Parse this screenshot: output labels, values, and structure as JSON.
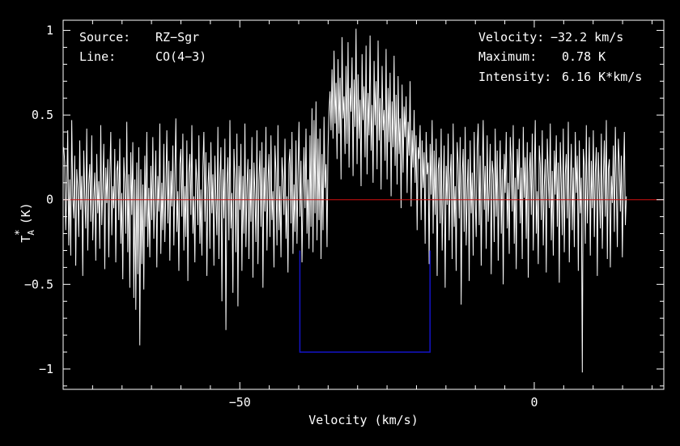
{
  "chart_data": {
    "type": "line",
    "xlabel": "Velocity (km/s)",
    "ylabel_main": "T",
    "ylabel_sup": "*",
    "ylabel_sub": "A",
    "ylabel_unit": "(K)",
    "xlim": [
      -80,
      22
    ],
    "ylim": [
      -1.12,
      1.06
    ],
    "x_ticks": [
      {
        "value": -50,
        "label": "−50"
      },
      {
        "value": 0,
        "label": "0"
      }
    ],
    "y_ticks": [
      {
        "value": 1,
        "label": "1"
      },
      {
        "value": 0.5,
        "label": "0.5"
      },
      {
        "value": 0,
        "label": "0"
      },
      {
        "value": -0.5,
        "label": "−0.5"
      },
      {
        "value": -1,
        "label": "−1"
      }
    ],
    "info_left": [
      {
        "key": "Source:",
        "value": "RZ−Sgr"
      },
      {
        "key": "Line:",
        "value": "CO(4−3)"
      }
    ],
    "info_right": [
      {
        "key": "Velocity:",
        "value": "−32.2 km/s"
      },
      {
        "key": "Maximum:",
        "value": "0.78 K"
      },
      {
        "key": "Intensity:",
        "value": "6.16 K*km/s"
      }
    ],
    "fit_profile": {
      "v_min": -39.8,
      "v_max": -17.7,
      "depth": -0.9,
      "rim": -0.3
    },
    "baseline": 0,
    "series": [
      {
        "x_start": -79.9,
        "x_step": 0.17,
        "values": [
          0.31,
          0.22,
          -0.18,
          0.05,
          0.41,
          -0.27,
          0.12,
          -0.33,
          0.47,
          0.02,
          -0.11,
          0.26,
          -0.39,
          0.18,
          0.07,
          -0.22,
          0.35,
          -0.06,
          0.14,
          -0.45,
          0.29,
          0.03,
          -0.17,
          0.42,
          -0.3,
          0.09,
          0.21,
          -0.13,
          0.38,
          -0.24,
          0.01,
          0.16,
          -0.36,
          0.27,
          -0.08,
          0.11,
          -0.29,
          0.44,
          -0.15,
          0.06,
          0.33,
          -0.41,
          0.19,
          -0.02,
          0.24,
          -0.34,
          0.13,
          0.4,
          -0.21,
          0.08,
          -0.05,
          0.3,
          -0.37,
          0.17,
          0.23,
          -0.12,
          0.36,
          -0.26,
          0.04,
          -0.47,
          0.25,
          0.1,
          -0.2,
          0.46,
          -0.31,
          0.15,
          -0.52,
          0.28,
          -0.09,
          0.34,
          -0.58,
          0.12,
          -0.65,
          0.22,
          -0.44,
          0.31,
          -0.86,
          0.18,
          -0.38,
          0.09,
          -0.53,
          0.26,
          -0.16,
          0.4,
          -0.28,
          0.07,
          -0.34,
          0.2,
          -0.12,
          0.37,
          -0.23,
          0.03,
          0.29,
          -0.4,
          0.14,
          -0.07,
          0.45,
          -0.32,
          0.1,
          -0.18,
          0.33,
          -0.25,
          0.06,
          0.41,
          -0.14,
          0.23,
          -0.36,
          0.17,
          -0.04,
          0.32,
          -0.27,
          0.12,
          0.48,
          -0.19,
          0.05,
          -0.42,
          0.21,
          0.3,
          -0.1,
          0.39,
          -0.3,
          0.08,
          -0.22,
          0.35,
          -0.48,
          0.16,
          0.27,
          -0.09,
          0.44,
          -0.2,
          0.02,
          -0.37,
          0.24,
          0.11,
          -0.15,
          0.38,
          -0.26,
          0.06,
          -0.33,
          0.19,
          0.4,
          -0.13,
          0.28,
          -0.45,
          0.07,
          0.22,
          -0.29,
          0.34,
          -0.08,
          0.15,
          -0.39,
          0.26,
          0.01,
          -0.21,
          0.43,
          -0.35,
          0.13,
          0.31,
          -0.6,
          0.18,
          -0.11,
          0.36,
          -0.77,
          0.09,
          0.25,
          -0.24,
          0.47,
          -0.17,
          0.04,
          -0.55,
          0.3,
          0.12,
          -0.31,
          0.39,
          -0.63,
          0.2,
          -0.06,
          0.33,
          -0.42,
          0.14,
          -0.2,
          0.45,
          -0.28,
          0.07,
          0.24,
          -0.35,
          0.18,
          -0.13,
          0.37,
          -0.46,
          0.22,
          0.03,
          -0.25,
          0.41,
          -0.38,
          0.11,
          0.29,
          -0.16,
          0.34,
          -0.52,
          0.19,
          -0.07,
          0.43,
          -0.3,
          0.1,
          0.27,
          -0.22,
          0.38,
          -0.12,
          0.05,
          -0.4,
          0.32,
          0.16,
          -0.27,
          0.44,
          -0.18,
          0.08,
          -0.34,
          0.25,
          0.13,
          -0.09,
          0.36,
          -0.23,
          0.02,
          -0.43,
          0.21,
          0.3,
          -0.14,
          0.4,
          -0.32,
          0.09,
          -0.19,
          0.35,
          -0.26,
          0.15,
          0.46,
          -0.1,
          0.23,
          -0.37,
          0.06,
          0.31,
          -0.05,
          0.42,
          -0.2,
          0.12,
          -0.29,
          0.38,
          -0.16,
          0.54,
          -0.31,
          0.47,
          -0.08,
          0.58,
          -0.24,
          0.36,
          -0.12,
          0.42,
          -0.35,
          0.27,
          -0.18,
          0.49,
          0.07,
          0.21,
          -0.28,
          0.31,
          0.52,
          0.64,
          0.41,
          0.77,
          0.36,
          0.88,
          0.45,
          0.69,
          0.24,
          0.83,
          0.39,
          0.72,
          0.12,
          0.96,
          0.48,
          0.61,
          0.27,
          0.79,
          0.33,
          0.93,
          0.19,
          0.66,
          0.52,
          0.84,
          0.14,
          0.71,
          0.43,
          1.01,
          0.21,
          0.74,
          0.36,
          0.59,
          0.08,
          0.86,
          0.47,
          0.67,
          0.25,
          0.91,
          0.15,
          0.63,
          0.38,
          0.97,
          0.29,
          0.56,
          0.1,
          0.82,
          0.44,
          0.7,
          0.18,
          0.94,
          0.35,
          0.6,
          0.06,
          0.79,
          0.41,
          0.53,
          0.23,
          0.89,
          0.12,
          0.66,
          0.34,
          0.75,
          0.02,
          0.58,
          0.31,
          0.85,
          0.2,
          0.62,
          0.09,
          0.73,
          0.27,
          0.48,
          -0.05,
          0.68,
          0.16,
          0.55,
          0.37,
          0.61,
          0.04,
          0.46,
          0.26,
          0.7,
          -0.04,
          0.41,
          0.19,
          0.53,
          0.1,
          0.38,
          -0.18,
          0.31,
          0.24,
          0.44,
          -0.12,
          0.35,
          0.07,
          0.28,
          -0.26,
          0.4,
          0.15,
          0.22,
          -0.38,
          0.33,
          0.03,
          0.47,
          -0.2,
          0.29,
          -0.09,
          0.36,
          -0.45,
          0.18,
          0.25,
          -0.14,
          0.42,
          -0.3,
          0.06,
          0.32,
          -0.52,
          0.2,
          -0.03,
          0.39,
          -0.24,
          0.13,
          0.27,
          -0.35,
          0.45,
          -0.16,
          0.08,
          -0.42,
          0.34,
          0.21,
          -0.11,
          0.37,
          -0.62,
          0.14,
          0.3,
          -0.19,
          0.43,
          -0.27,
          0.05,
          0.24,
          -0.48,
          0.35,
          -0.08,
          0.16,
          -0.33,
          0.4,
          0.02,
          -0.22,
          0.31,
          0.45,
          -0.15,
          0.26,
          -0.39,
          0.12,
          0.47,
          -0.06,
          0.2,
          -0.29,
          0.38,
          -0.13,
          0.07,
          0.33,
          -0.44,
          0.23,
          0.15,
          -0.25,
          0.42,
          -0.1,
          0.29,
          -0.36,
          0.08,
          0.35,
          -0.2,
          0.18,
          -0.5,
          0.27,
          0.04,
          0.4,
          -0.17,
          0.1,
          -0.32,
          0.37,
          0.22,
          -0.07,
          0.44,
          -0.26,
          0.13,
          -0.41,
          0.3,
          0.06,
          0.36,
          -0.14,
          0.19,
          -0.35,
          0.43,
          0.01,
          0.25,
          -0.23,
          0.34,
          -0.46,
          0.16,
          0.28,
          -0.09,
          0.39,
          -0.3,
          0.11,
          0.47,
          -0.2,
          0.05,
          -0.38,
          0.32,
          0.21,
          -0.12,
          0.41,
          -0.27,
          0.08,
          0.24,
          -0.43,
          0.36,
          0.14,
          -0.05,
          0.45,
          -0.24,
          0.17,
          -0.33,
          0.29,
          0.03,
          0.38,
          -0.16,
          0.22,
          -0.49,
          0.34,
          0.1,
          -0.21,
          0.42,
          -0.31,
          0.15,
          0.27,
          -0.11,
          0.46,
          -0.37,
          0.07,
          0.33,
          -0.18,
          0.19,
          -0.28,
          0.4,
          0.04,
          0.26,
          -0.42,
          0.35,
          -0.08,
          0.13,
          -1.02,
          0.3,
          0.2,
          -0.26,
          0.44,
          -0.14,
          0.09,
          0.37,
          -0.33,
          0.23,
          -0.05,
          0.41,
          -0.22,
          0.16,
          0.31,
          -0.45,
          0.28,
          0.06,
          -0.17,
          0.39,
          -0.29,
          0.12,
          0.35,
          -0.1,
          0.47,
          -0.35,
          0.18,
          0.24,
          -0.4,
          0.14,
          -0.02,
          0.32,
          -0.19,
          0.43,
          0.08,
          -0.28,
          0.36,
          0.21,
          -0.07,
          0.26,
          -0.34,
          0.11,
          0.4,
          -0.15,
          0.02
        ]
      }
    ]
  }
}
